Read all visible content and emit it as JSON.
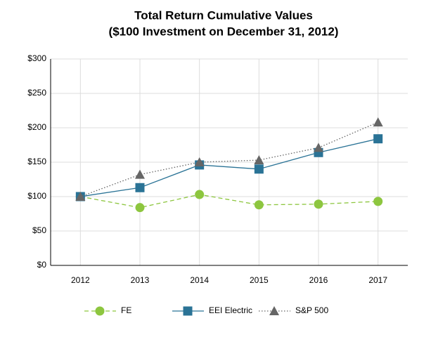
{
  "chart_data": {
    "type": "line",
    "title": "Total Return Cumulative Values",
    "subtitle": "($100 Investment on December 31, 2012)",
    "categories": [
      "2012",
      "2013",
      "2014",
      "2015",
      "2016",
      "2017"
    ],
    "series": [
      {
        "name": "FE",
        "color": "#8dc63f",
        "marker": "circle",
        "line_style": "dashed",
        "values": [
          100,
          84,
          103,
          88,
          89,
          93
        ]
      },
      {
        "name": "EEI Electric",
        "color": "#2a7396",
        "marker": "square",
        "line_style": "solid",
        "values": [
          100,
          113,
          146,
          140,
          164,
          184
        ]
      },
      {
        "name": "S&P 500",
        "color": "#666666",
        "marker": "triangle",
        "line_style": "dotted",
        "values": [
          100,
          132,
          150,
          153,
          171,
          208
        ]
      }
    ],
    "ylim": [
      0,
      300
    ],
    "yticks": [
      {
        "value": 0,
        "label": "$0"
      },
      {
        "value": 50,
        "label": "$50"
      },
      {
        "value": 100,
        "label": "$100"
      },
      {
        "value": 150,
        "label": "$150"
      },
      {
        "value": 200,
        "label": "$200"
      },
      {
        "value": 250,
        "label": "$250"
      },
      {
        "value": 300,
        "label": "$300"
      }
    ],
    "grid": true,
    "legend": "bottom"
  }
}
